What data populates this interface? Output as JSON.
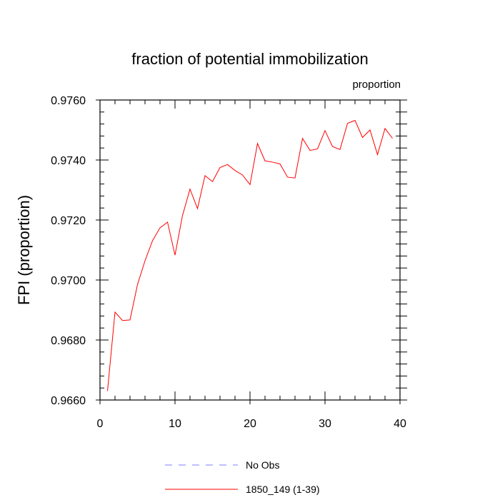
{
  "chart_data": {
    "type": "line",
    "title": "fraction of potential immobilization",
    "units_label": "proportion",
    "xlabel": "",
    "ylabel": "FPI  (proportion)",
    "xlim": [
      0,
      40
    ],
    "ylim": [
      0.966,
      0.976
    ],
    "x_ticks": [
      "0",
      "10",
      "20",
      "30",
      "40"
    ],
    "y_ticks": [
      "0.9660",
      "0.9680",
      "0.9700",
      "0.9720",
      "0.9740",
      "0.9760"
    ],
    "grid": false,
    "legend_position": "bottom-center",
    "series": [
      {
        "name": "No Obs",
        "color": "#7f7fff",
        "style": "dashed",
        "x": [],
        "values": []
      },
      {
        "name": "1850_149 (1-39)",
        "color": "#ff0000",
        "style": "solid",
        "x": [
          1,
          2,
          3,
          4,
          5,
          6,
          7,
          8,
          9,
          10,
          11,
          12,
          13,
          14,
          15,
          16,
          17,
          18,
          19,
          20,
          21,
          22,
          23,
          24,
          25,
          26,
          27,
          28,
          29,
          30,
          31,
          32,
          33,
          34,
          35,
          36,
          37,
          38,
          39
        ],
        "values": [
          0.9663,
          0.96893,
          0.96865,
          0.96867,
          0.96985,
          0.97064,
          0.97131,
          0.97174,
          0.97193,
          0.97083,
          0.97215,
          0.97303,
          0.97238,
          0.97348,
          0.97328,
          0.97375,
          0.97385,
          0.97365,
          0.9735,
          0.97318,
          0.97455,
          0.97397,
          0.97393,
          0.97387,
          0.97343,
          0.9734,
          0.97472,
          0.97432,
          0.97437,
          0.97498,
          0.97445,
          0.97435,
          0.97522,
          0.97532,
          0.97475,
          0.975,
          0.97418,
          0.97505,
          0.97472
        ]
      }
    ]
  }
}
